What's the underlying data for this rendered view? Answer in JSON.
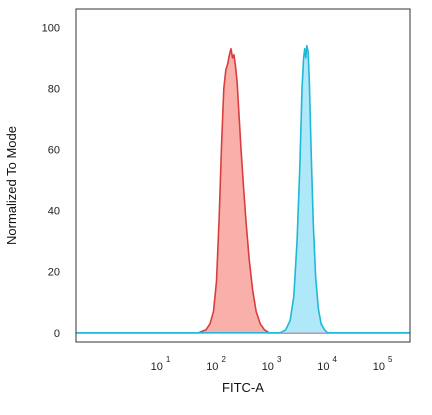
{
  "chart_data": {
    "type": "area",
    "title": "",
    "xlabel": "FITC-A",
    "ylabel": "Normalized To Mode",
    "x_scale": "log",
    "xlim": [
      0.25,
      260000
    ],
    "ylim": [
      -3,
      106
    ],
    "x_ticks": [
      {
        "value": 10,
        "base": "10",
        "exp": "1"
      },
      {
        "value": 100,
        "base": "10",
        "exp": "2"
      },
      {
        "value": 1000,
        "base": "10",
        "exp": "3"
      },
      {
        "value": 10000,
        "base": "10",
        "exp": "4"
      },
      {
        "value": 100000,
        "base": "10",
        "exp": "5"
      }
    ],
    "y_ticks": [
      0,
      20,
      40,
      60,
      80,
      100
    ],
    "grid": false,
    "legend": "none",
    "series": [
      {
        "color": "#d93d3d",
        "fill": "#f9a7a1",
        "points": [
          [
            0.25,
            0
          ],
          [
            40,
            0
          ],
          [
            55,
            1
          ],
          [
            65,
            3
          ],
          [
            75,
            7
          ],
          [
            85,
            17
          ],
          [
            95,
            38
          ],
          [
            105,
            62
          ],
          [
            115,
            80
          ],
          [
            125,
            86
          ],
          [
            135,
            88
          ],
          [
            145,
            91
          ],
          [
            155,
            93
          ],
          [
            165,
            90
          ],
          [
            175,
            91
          ],
          [
            185,
            88
          ],
          [
            200,
            82
          ],
          [
            215,
            72
          ],
          [
            235,
            60
          ],
          [
            260,
            48
          ],
          [
            290,
            36
          ],
          [
            330,
            24
          ],
          [
            380,
            14
          ],
          [
            440,
            7
          ],
          [
            520,
            3
          ],
          [
            620,
            1
          ],
          [
            750,
            0
          ],
          [
            260000,
            0
          ]
        ]
      },
      {
        "color": "#1fb8d6",
        "fill": "#a6e5f7",
        "points": [
          [
            0.25,
            0
          ],
          [
            1200,
            0
          ],
          [
            1500,
            1
          ],
          [
            1800,
            4
          ],
          [
            2100,
            12
          ],
          [
            2400,
            30
          ],
          [
            2700,
            55
          ],
          [
            2950,
            80
          ],
          [
            3150,
            90
          ],
          [
            3300,
            93
          ],
          [
            3450,
            90
          ],
          [
            3600,
            94
          ],
          [
            3800,
            92
          ],
          [
            4000,
            82
          ],
          [
            4300,
            60
          ],
          [
            4700,
            36
          ],
          [
            5200,
            18
          ],
          [
            5800,
            8
          ],
          [
            6500,
            3
          ],
          [
            7500,
            1
          ],
          [
            8500,
            0
          ],
          [
            260000,
            0
          ]
        ]
      }
    ]
  }
}
